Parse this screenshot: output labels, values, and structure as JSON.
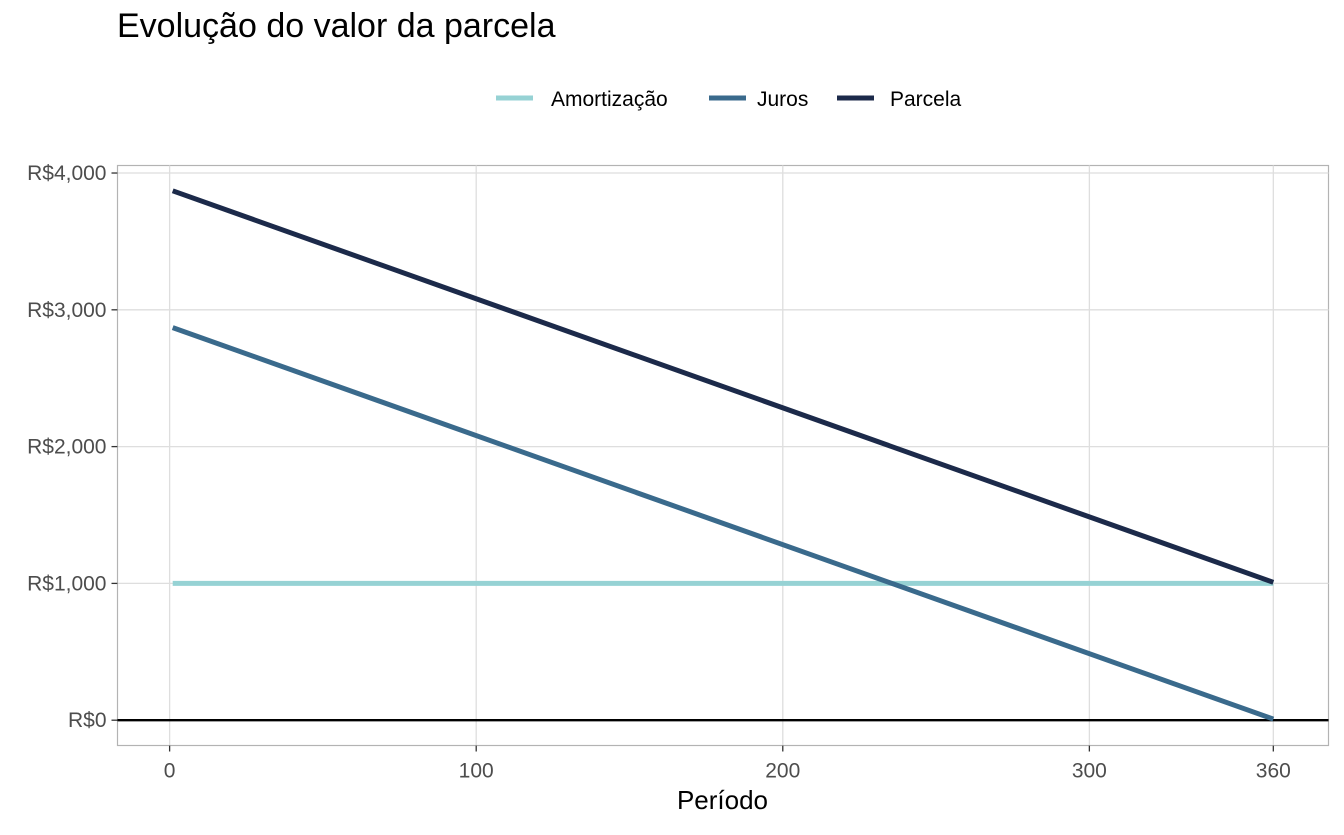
{
  "chart_data": {
    "type": "line",
    "title": "Evolução do valor da parcela",
    "xlabel": "Período",
    "ylabel": "",
    "x_ticks": [
      0,
      100,
      200,
      300,
      360
    ],
    "y_ticks": [
      0,
      1000,
      2000,
      3000,
      4000
    ],
    "y_tick_labels": [
      "R$0",
      "R$1,000",
      "R$2,000",
      "R$3,000",
      "R$4,000"
    ],
    "xlim": [
      -17,
      378
    ],
    "ylim": [
      -185,
      4055
    ],
    "grid": true,
    "zero_line": true,
    "legend_position": "top",
    "series": [
      {
        "name": "Amortização",
        "color": "#96D2D4",
        "x": [
          1,
          360
        ],
        "y": [
          1000,
          1000
        ]
      },
      {
        "name": "Juros",
        "color": "#3A6A8C",
        "x": [
          1,
          360
        ],
        "y": [
          2870,
          8
        ]
      },
      {
        "name": "Parcela",
        "color": "#1C2A4A",
        "x": [
          1,
          360
        ],
        "y": [
          3870,
          1008
        ]
      }
    ]
  }
}
